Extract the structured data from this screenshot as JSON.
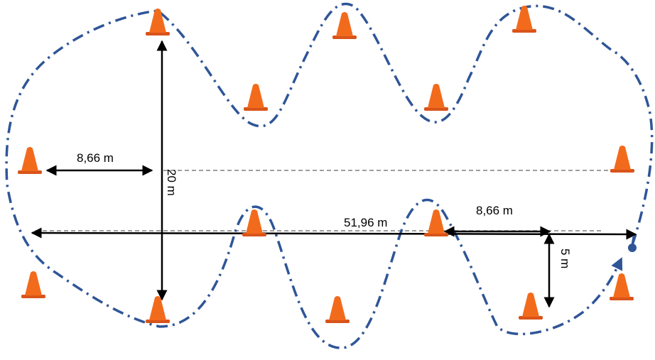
{
  "labels": {
    "left_width": "8,66 m",
    "height": "20 m",
    "total_length": "51,96 m",
    "right_width": "8,66 m",
    "offset": "5 m"
  },
  "colors": {
    "path": "#2f5597",
    "cone": "#f26b1d",
    "cone_shade": "#d9541a",
    "arrow": "#000000",
    "guide": "#7f7f7f"
  },
  "icons": {
    "cone": "traffic-cone-icon",
    "start": "start-dot-icon"
  }
}
